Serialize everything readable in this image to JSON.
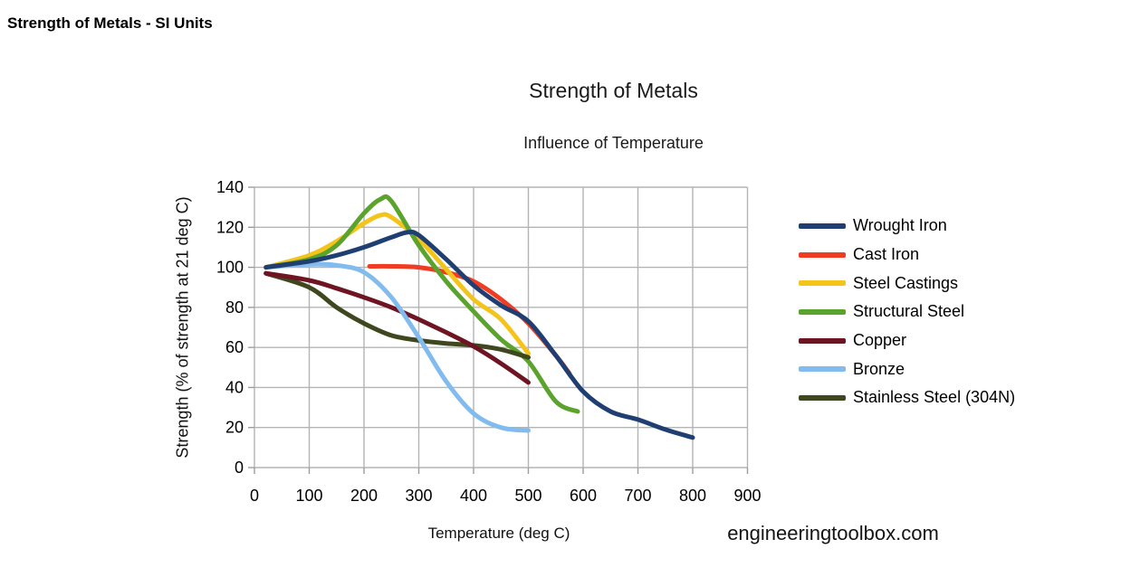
{
  "page": {
    "title": "Strength of Metals - SI Units"
  },
  "footer": {
    "watermark": "engineeringtoolbox.com"
  },
  "chart_data": {
    "type": "line",
    "title": "Strength of Metals",
    "subtitle": "Influence of Temperature",
    "xlabel": "Temperature (deg C)",
    "ylabel": "Strength (% of strength at 21 deg C)",
    "xlim": [
      0,
      900
    ],
    "ylim": [
      0,
      140
    ],
    "x_ticks": [
      0,
      100,
      200,
      300,
      400,
      500,
      600,
      700,
      800,
      900
    ],
    "y_ticks": [
      0,
      20,
      40,
      60,
      80,
      100,
      120,
      140
    ],
    "grid": true,
    "grid_color": "#b4b4b4",
    "tick_color": "#9c9c9c",
    "legend_position": "right",
    "series": [
      {
        "name": "Wrought Iron",
        "color": "#1f3f72",
        "points": [
          [
            21,
            100
          ],
          [
            100,
            103
          ],
          [
            150,
            106
          ],
          [
            200,
            110
          ],
          [
            250,
            115
          ],
          [
            280,
            117.5
          ],
          [
            300,
            116
          ],
          [
            350,
            104
          ],
          [
            400,
            91
          ],
          [
            450,
            81
          ],
          [
            500,
            73
          ],
          [
            550,
            56
          ],
          [
            600,
            38
          ],
          [
            650,
            28
          ],
          [
            700,
            24
          ],
          [
            750,
            19
          ],
          [
            800,
            15
          ]
        ]
      },
      {
        "name": "Cast Iron",
        "color": "#f03c22",
        "points": [
          [
            210,
            100.5
          ],
          [
            250,
            100.5
          ],
          [
            300,
            100
          ],
          [
            350,
            97.5
          ],
          [
            400,
            93
          ],
          [
            450,
            84
          ],
          [
            500,
            72
          ],
          [
            550,
            56
          ],
          [
            575,
            47
          ]
        ]
      },
      {
        "name": "Steel Castings",
        "color": "#f5c41a",
        "points": [
          [
            21,
            100
          ],
          [
            100,
            106
          ],
          [
            150,
            113
          ],
          [
            200,
            122
          ],
          [
            230,
            126
          ],
          [
            250,
            125
          ],
          [
            300,
            114
          ],
          [
            350,
            99
          ],
          [
            400,
            84
          ],
          [
            450,
            74
          ],
          [
            500,
            57
          ]
        ]
      },
      {
        "name": "Structural Steel",
        "color": "#5aa32c",
        "points": [
          [
            21,
            100
          ],
          [
            100,
            104
          ],
          [
            150,
            111
          ],
          [
            200,
            127
          ],
          [
            230,
            134
          ],
          [
            250,
            133
          ],
          [
            300,
            111
          ],
          [
            350,
            93
          ],
          [
            400,
            78
          ],
          [
            450,
            64
          ],
          [
            500,
            53
          ],
          [
            550,
            33
          ],
          [
            590,
            28
          ]
        ]
      },
      {
        "name": "Copper",
        "color": "#6e1423",
        "points": [
          [
            21,
            97
          ],
          [
            100,
            93.5
          ],
          [
            150,
            89.5
          ],
          [
            200,
            85
          ],
          [
            250,
            80
          ],
          [
            300,
            74
          ],
          [
            350,
            67.5
          ],
          [
            400,
            60.5
          ],
          [
            450,
            52
          ],
          [
            500,
            42.5
          ]
        ]
      },
      {
        "name": "Bronze",
        "color": "#82bbee",
        "points": [
          [
            21,
            100
          ],
          [
            100,
            101.5
          ],
          [
            150,
            101
          ],
          [
            200,
            97.5
          ],
          [
            250,
            85
          ],
          [
            300,
            65
          ],
          [
            350,
            43
          ],
          [
            400,
            27
          ],
          [
            450,
            20
          ],
          [
            500,
            18.5
          ]
        ]
      },
      {
        "name": "Stainless Steel (304N)",
        "color": "#3e471d",
        "points": [
          [
            21,
            97
          ],
          [
            100,
            90
          ],
          [
            150,
            80
          ],
          [
            200,
            72
          ],
          [
            250,
            66
          ],
          [
            300,
            63.5
          ],
          [
            350,
            62
          ],
          [
            400,
            61
          ],
          [
            450,
            59
          ],
          [
            500,
            55
          ]
        ]
      }
    ],
    "draw_order": [
      1,
      2,
      3,
      6,
      4,
      5,
      0
    ]
  }
}
